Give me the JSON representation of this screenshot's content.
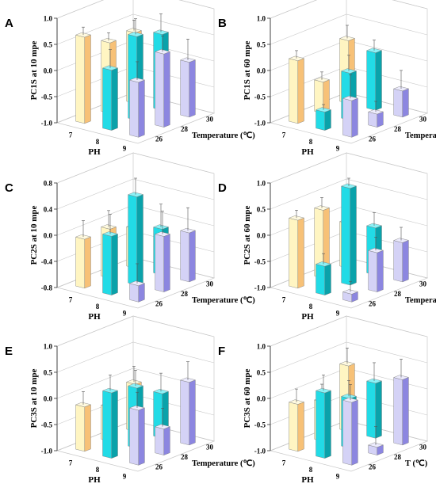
{
  "chart_data": [
    {
      "panel": "A",
      "type": "bar",
      "ylabel": "PC1S at 10 mpe",
      "xlabel": "PH",
      "zlabel": "Temperature (℃)",
      "x": [
        "7",
        "8",
        "9"
      ],
      "z": [
        "26",
        "28",
        "30"
      ],
      "yticks": [
        "1.0",
        "0.5",
        "0.0",
        "-0.5",
        "-1.0"
      ],
      "ylim": [
        -1.0,
        1.0
      ],
      "values": [
        [
          0.65,
          0.35,
          0.35
        ],
        [
          0.15,
          0.6,
          0.45
        ],
        [
          0.05,
          0.4,
          0.05
        ]
      ],
      "errors": [
        [
          0.15,
          0.15,
          0.2
        ],
        [
          0.35,
          0.3,
          0.35
        ],
        [
          0.35,
          0.3,
          0.4
        ]
      ]
    },
    {
      "panel": "B",
      "type": "bar",
      "ylabel": "PC1S at 60 mpe",
      "xlabel": "PH",
      "zlabel": "Temperature (℃)",
      "x": [
        "7",
        "8",
        "9"
      ],
      "z": [
        "26",
        "28",
        "30"
      ],
      "yticks": [
        "1.0",
        "0.5",
        "0.0",
        "-0.5",
        "-1.0"
      ],
      "ylim": [
        -1.0,
        1.0
      ],
      "values": [
        [
          0.2,
          -0.4,
          0.2
        ],
        [
          -0.65,
          -0.1,
          0.1
        ],
        [
          -0.3,
          -0.75,
          -0.5
        ]
      ],
      "errors": [
        [
          0.15,
          0.15,
          0.25
        ],
        [
          0.1,
          0.3,
          0.2
        ],
        [
          0.45,
          0.2,
          0.35
        ]
      ]
    },
    {
      "panel": "C",
      "type": "bar",
      "ylabel": "PC2S at 10 mpe",
      "xlabel": "PH",
      "zlabel": "Temperature (℃)",
      "x": [
        "7",
        "8",
        "9"
      ],
      "z": [
        "26",
        "28",
        "30"
      ],
      "yticks": [
        "0.8",
        "0.4",
        "0.0",
        "-0.4",
        "-0.8"
      ],
      "ylim": [
        -0.8,
        0.8
      ],
      "values": [
        [
          -0.05,
          -0.05,
          -0.2
        ],
        [
          0.1,
          0.55,
          -0.1
        ],
        [
          -0.55,
          0.05,
          -0.05
        ]
      ],
      "errors": [
        [
          0.25,
          0.25,
          0.35
        ],
        [
          0.3,
          0.3,
          0.35
        ],
        [
          0.3,
          0.35,
          0.35
        ]
      ]
    },
    {
      "panel": "D",
      "type": "bar",
      "ylabel": "PC2S at 60 mpe",
      "xlabel": "PH",
      "zlabel": "Temperature (℃)",
      "x": [
        "7",
        "8",
        "9"
      ],
      "z": [
        "26",
        "28",
        "30"
      ],
      "yticks": [
        "1.0",
        "0.5",
        "0.0",
        "-0.5",
        "-1.0"
      ],
      "ylim": [
        -1.0,
        1.0
      ],
      "values": [
        [
          0.3,
          0.3,
          -0.15
        ],
        [
          -0.45,
          0.85,
          -0.1
        ],
        [
          -0.85,
          -0.25,
          -0.25
        ]
      ],
      "errors": [
        [
          0.15,
          0.2,
          0.25
        ],
        [
          0.2,
          0.2,
          0.25
        ],
        [
          0.2,
          0.25,
          0.25
        ]
      ]
    },
    {
      "panel": "E",
      "type": "bar",
      "ylabel": "PC3S at 10 mpe",
      "xlabel": "PH",
      "zlabel": "Temperature (℃)",
      "x": [
        "7",
        "8",
        "9"
      ],
      "z": [
        "26",
        "28",
        "30"
      ],
      "yticks": [
        "1.0",
        "0.5",
        "0.0",
        "-0.5",
        "-1.0"
      ],
      "ylim": [
        -1.0,
        1.0
      ],
      "values": [
        [
          -0.15,
          -0.35,
          -0.1
        ],
        [
          0.25,
          0.15,
          -0.15
        ],
        [
          0.05,
          -0.5,
          0.2
        ]
      ],
      "errors": [
        [
          0.25,
          0.3,
          0.3
        ],
        [
          0.3,
          0.3,
          0.35
        ],
        [
          0.3,
          0.35,
          0.35
        ]
      ]
    },
    {
      "panel": "F",
      "type": "bar",
      "ylabel": "PC3S at 60 mpe",
      "xlabel": "PH",
      "zlabel": "T (℃)",
      "x": [
        "7",
        "8",
        "9"
      ],
      "z": [
        "26",
        "28",
        "30"
      ],
      "yticks": [
        "1.0",
        "0.5",
        "0.0",
        "-0.5",
        "-1.0"
      ],
      "ylim": [
        -1.0,
        1.0
      ],
      "values": [
        [
          -0.1,
          -0.25,
          0.25
        ],
        [
          0.25,
          -0.05,
          0.05
        ],
        [
          0.2,
          -0.85,
          0.25
        ]
      ],
      "errors": [
        [
          0.25,
          0.3,
          0.3
        ],
        [
          0.3,
          0.3,
          0.35
        ],
        [
          0.3,
          0.35,
          0.35
        ]
      ]
    }
  ],
  "colors": {
    "ph7": {
      "front": "#fff5c2",
      "side": "#f7c177",
      "top": "#fffae0"
    },
    "ph8": {
      "front": "#22dbe6",
      "side": "#0aa2aa",
      "top": "#8cf2f7"
    },
    "ph9": {
      "front": "#d4d2f6",
      "side": "#8c86e0",
      "top": "#ecebfc"
    },
    "axis": "#333333",
    "grid": "#c8c8c8"
  }
}
